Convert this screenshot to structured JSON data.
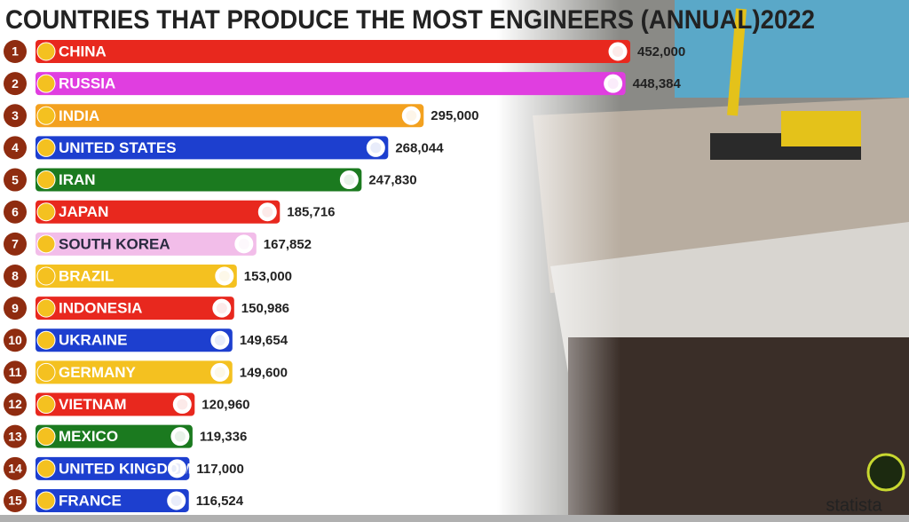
{
  "chart_data": {
    "type": "bar",
    "title": "COUNTRIES THAT PRODUCE THE MOST ENGINEERS (ANNUAL)2022",
    "ranks": [
      1,
      2,
      3,
      4,
      5,
      6,
      7,
      8,
      9,
      10,
      11,
      12,
      13,
      14,
      15
    ],
    "categories": [
      "CHINA",
      "RUSSIA",
      "INDIA",
      "UNITED STATES",
      "IRAN",
      "JAPAN",
      "SOUTH KOREA",
      "BRAZIL",
      "INDONESIA",
      "UKRAINE",
      "GERMANY",
      "VIETNAM",
      "MEXICO",
      "UNITED KINGDOM",
      "FRANCE"
    ],
    "values": [
      452000,
      448384,
      295000,
      268044,
      247830,
      185716,
      167852,
      153000,
      150986,
      149654,
      149600,
      120960,
      119336,
      117000,
      116524
    ],
    "value_labels": [
      "452,000",
      "448,384",
      "295,000",
      "268,044",
      "247,830",
      "185,716",
      "167,852",
      "153,000",
      "150,986",
      "149,654",
      "149,600",
      "120,960",
      "119,336",
      "117,000",
      "116,524"
    ],
    "colors": [
      "#e8281e",
      "#e03ee0",
      "#f3a11f",
      "#1d3fcf",
      "#1b7a1f",
      "#e8281e",
      "#f2bde9",
      "#f4c120",
      "#e8281e",
      "#1d3fcf",
      "#f4c120",
      "#e8281e",
      "#1b7a1f",
      "#1d3fcf",
      "#1d3fcf"
    ],
    "watermark": "statista"
  }
}
